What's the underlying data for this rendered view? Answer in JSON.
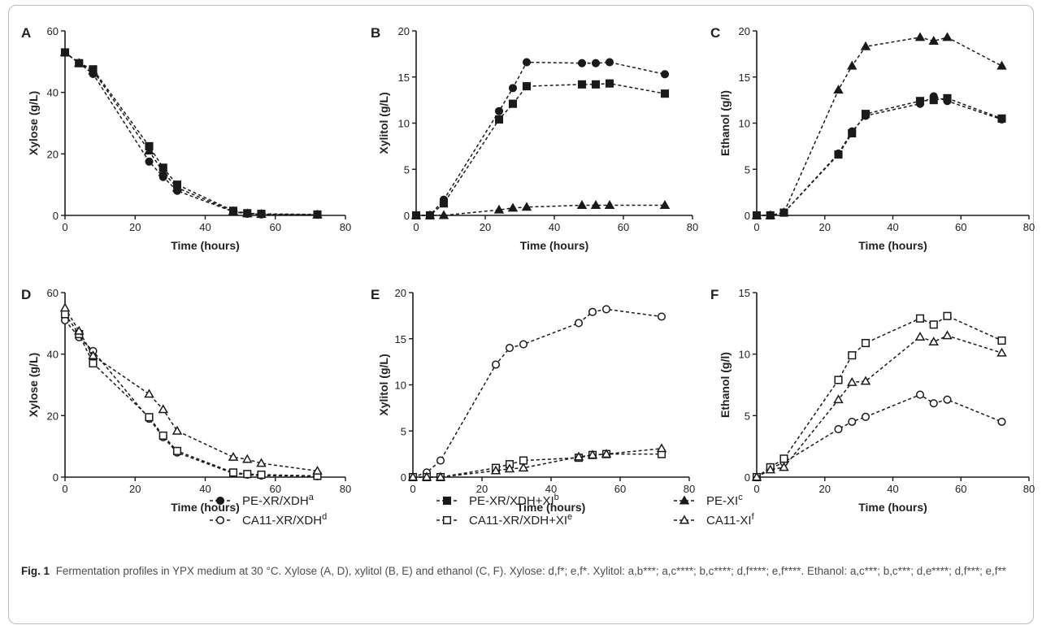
{
  "figure": {
    "caption_label": "Fig. 1",
    "caption_text": "Fermentation profiles in YPX medium at 30 °C. Xylose (A, D), xylitol (B, E) and ethanol (C, F). Xylose: d,f*; e,f*. Xylitol: a,b***; a,c****; b,c****; d,f****; e,f****. Ethanol: a,c***; b,c***; d,e****; d,f***; e,f**"
  },
  "legend": [
    {
      "label": "PE-XR/XDH",
      "sup": "a",
      "marker": "circle",
      "fill": "filled"
    },
    {
      "label": "PE-XR/XDH+XI",
      "sup": "b",
      "marker": "square",
      "fill": "filled"
    },
    {
      "label": "PE-XI",
      "sup": "c",
      "marker": "triangle",
      "fill": "filled"
    },
    {
      "label": "CA11-XR/XDH",
      "sup": "d",
      "marker": "circle",
      "fill": "open"
    },
    {
      "label": "CA11-XR/XDH+XI",
      "sup": "e",
      "marker": "square",
      "fill": "open"
    },
    {
      "label": "CA11-XI",
      "sup": "f",
      "marker": "triangle",
      "fill": "open"
    }
  ],
  "chart_data": [
    {
      "panel": "A",
      "type": "line",
      "xlabel": "Time (hours)",
      "ylabel": "Xylose (g/L)",
      "xlim": [
        0,
        80
      ],
      "ylim": [
        0,
        60
      ],
      "xticks": [
        0,
        20,
        40,
        60,
        80
      ],
      "yticks": [
        0,
        20,
        40,
        60
      ],
      "series": [
        {
          "name": "PE-XR/XDH",
          "marker": "circle",
          "fill": "filled",
          "x": [
            0,
            4,
            8,
            24,
            28,
            32,
            48,
            52,
            56,
            72
          ],
          "y": [
            53,
            49.5,
            46,
            17.5,
            12.5,
            8,
            1.2,
            0.5,
            0.3,
            0.2
          ]
        },
        {
          "name": "PE-XR/XDH+XI",
          "marker": "square",
          "fill": "filled",
          "x": [
            0,
            4,
            8,
            24,
            28,
            32,
            48,
            52,
            56,
            72
          ],
          "y": [
            53,
            49.5,
            47.5,
            22.5,
            15.5,
            10,
            1.5,
            0.7,
            0.5,
            0.3
          ]
        },
        {
          "name": "PE-XI",
          "marker": "triangle",
          "fill": "filled",
          "x": [
            0,
            4,
            8,
            24,
            28,
            32,
            48,
            52,
            56,
            72
          ],
          "y": [
            53,
            49.5,
            47,
            21,
            14,
            9,
            1.3,
            0.6,
            0.4,
            0.2
          ]
        }
      ]
    },
    {
      "panel": "B",
      "type": "line",
      "xlabel": "Time (hours)",
      "ylabel": "Xylitol (g/L)",
      "xlim": [
        0,
        80
      ],
      "ylim": [
        0,
        20
      ],
      "xticks": [
        0,
        20,
        40,
        60,
        80
      ],
      "yticks": [
        0,
        5,
        10,
        15,
        20
      ],
      "series": [
        {
          "name": "PE-XR/XDH",
          "marker": "circle",
          "fill": "filled",
          "x": [
            0,
            4,
            8,
            24,
            28,
            32,
            48,
            52,
            56,
            72
          ],
          "y": [
            0,
            0,
            1.7,
            11.3,
            13.8,
            16.6,
            16.5,
            16.5,
            16.6,
            15.3
          ]
        },
        {
          "name": "PE-XR/XDH+XI",
          "marker": "square",
          "fill": "filled",
          "x": [
            0,
            4,
            8,
            24,
            28,
            32,
            48,
            52,
            56,
            72
          ],
          "y": [
            0,
            0,
            1.3,
            10.4,
            12.1,
            14.0,
            14.2,
            14.2,
            14.3,
            13.2
          ]
        },
        {
          "name": "PE-XI",
          "marker": "triangle",
          "fill": "filled",
          "x": [
            0,
            4,
            8,
            24,
            28,
            32,
            48,
            52,
            56,
            72
          ],
          "y": [
            0,
            0,
            0,
            0.6,
            0.8,
            0.9,
            1.1,
            1.1,
            1.1,
            1.1
          ]
        }
      ]
    },
    {
      "panel": "C",
      "type": "line",
      "xlabel": "Time (hours)",
      "ylabel": "Ethanol (g/l)",
      "xlim": [
        0,
        80
      ],
      "ylim": [
        0,
        20
      ],
      "xticks": [
        0,
        20,
        40,
        60,
        80
      ],
      "yticks": [
        0,
        5,
        10,
        15,
        20
      ],
      "series": [
        {
          "name": "PE-XR/XDH",
          "marker": "circle",
          "fill": "filled",
          "x": [
            0,
            4,
            8,
            24,
            28,
            32,
            48,
            52,
            56,
            72
          ],
          "y": [
            0,
            0,
            0.3,
            6.7,
            9.1,
            10.8,
            12.1,
            12.9,
            12.4,
            10.4
          ]
        },
        {
          "name": "PE-XR/XDH+XI",
          "marker": "square",
          "fill": "filled",
          "x": [
            0,
            4,
            8,
            24,
            28,
            32,
            48,
            52,
            56,
            72
          ],
          "y": [
            0,
            0,
            0.3,
            6.6,
            8.9,
            11.0,
            12.4,
            12.5,
            12.7,
            10.5
          ]
        },
        {
          "name": "PE-XI",
          "marker": "triangle",
          "fill": "filled",
          "x": [
            0,
            4,
            8,
            24,
            28,
            32,
            48,
            52,
            56,
            72
          ],
          "y": [
            0,
            0,
            0.3,
            13.6,
            16.2,
            18.3,
            19.3,
            18.9,
            19.3,
            16.2
          ]
        }
      ]
    },
    {
      "panel": "D",
      "type": "line",
      "xlabel": "Time (hours)",
      "ylabel": "Xylose (g/L)",
      "xlim": [
        0,
        80
      ],
      "ylim": [
        0,
        60
      ],
      "xticks": [
        0,
        20,
        40,
        60,
        80
      ],
      "yticks": [
        0,
        20,
        40,
        60
      ],
      "series": [
        {
          "name": "CA11-XR/XDH",
          "marker": "circle",
          "fill": "open",
          "x": [
            0,
            4,
            8,
            24,
            28,
            32,
            48,
            52,
            56,
            72
          ],
          "y": [
            51,
            45.5,
            41,
            19,
            13,
            8,
            1.2,
            0.8,
            0.5,
            0.3
          ]
        },
        {
          "name": "CA11-XR/XDH+XI",
          "marker": "square",
          "fill": "open",
          "x": [
            0,
            4,
            8,
            24,
            28,
            32,
            48,
            52,
            56,
            72
          ],
          "y": [
            53,
            46.5,
            37,
            19.5,
            13.5,
            8.5,
            1.5,
            1.0,
            0.8,
            0.4
          ]
        },
        {
          "name": "CA11-XI",
          "marker": "triangle",
          "fill": "open",
          "x": [
            0,
            4,
            8,
            24,
            28,
            32,
            48,
            52,
            56,
            72
          ],
          "y": [
            55,
            47.5,
            39.5,
            27,
            22,
            15,
            6.5,
            5.8,
            4.5,
            2
          ]
        }
      ]
    },
    {
      "panel": "E",
      "type": "line",
      "xlabel": "Time (hours)",
      "ylabel": "Xylitol (g/L)",
      "xlim": [
        0,
        80
      ],
      "ylim": [
        0,
        20
      ],
      "xticks": [
        0,
        20,
        40,
        60,
        80
      ],
      "yticks": [
        0,
        5,
        10,
        15,
        20
      ],
      "series": [
        {
          "name": "CA11-XR/XDH",
          "marker": "circle",
          "fill": "open",
          "x": [
            0,
            4,
            8,
            24,
            28,
            32,
            48,
            52,
            56,
            72
          ],
          "y": [
            0,
            0.5,
            1.8,
            12.2,
            14.0,
            14.4,
            16.7,
            17.9,
            18.2,
            17.4
          ]
        },
        {
          "name": "CA11-XR/XDH+XI",
          "marker": "square",
          "fill": "open",
          "x": [
            0,
            4,
            8,
            24,
            28,
            32,
            48,
            52,
            56,
            72
          ],
          "y": [
            0,
            0,
            0,
            1.0,
            1.4,
            1.8,
            2.1,
            2.4,
            2.5,
            2.5
          ]
        },
        {
          "name": "CA11-XI",
          "marker": "triangle",
          "fill": "open",
          "x": [
            0,
            4,
            8,
            24,
            28,
            32,
            48,
            52,
            56,
            72
          ],
          "y": [
            0,
            0,
            0,
            0.7,
            0.9,
            1.0,
            2.2,
            2.4,
            2.5,
            3.1
          ]
        }
      ]
    },
    {
      "panel": "F",
      "type": "line",
      "xlabel": "Time (hours)",
      "ylabel": "Ethanol (g/l)",
      "xlim": [
        0,
        80
      ],
      "ylim": [
        0,
        15
      ],
      "xticks": [
        0,
        20,
        40,
        60,
        80
      ],
      "yticks": [
        0,
        5,
        10,
        15
      ],
      "series": [
        {
          "name": "CA11-XR/XDH",
          "marker": "circle",
          "fill": "open",
          "x": [
            0,
            4,
            8,
            24,
            28,
            32,
            48,
            52,
            56,
            72
          ],
          "y": [
            0,
            0.7,
            1.2,
            3.9,
            4.5,
            4.9,
            6.7,
            6.0,
            6.3,
            4.5
          ]
        },
        {
          "name": "CA11-XR/XDH+XI",
          "marker": "square",
          "fill": "open",
          "x": [
            0,
            4,
            8,
            24,
            28,
            32,
            48,
            52,
            56,
            72
          ],
          "y": [
            0,
            0.8,
            1.5,
            7.9,
            9.9,
            10.9,
            12.9,
            12.4,
            13.1,
            11.1
          ]
        },
        {
          "name": "CA11-XI",
          "marker": "triangle",
          "fill": "open",
          "x": [
            0,
            4,
            8,
            24,
            28,
            32,
            48,
            52,
            56,
            72
          ],
          "y": [
            0,
            0.6,
            0.8,
            6.3,
            7.7,
            7.8,
            11.4,
            11.0,
            11.5,
            10.1
          ]
        }
      ]
    }
  ]
}
